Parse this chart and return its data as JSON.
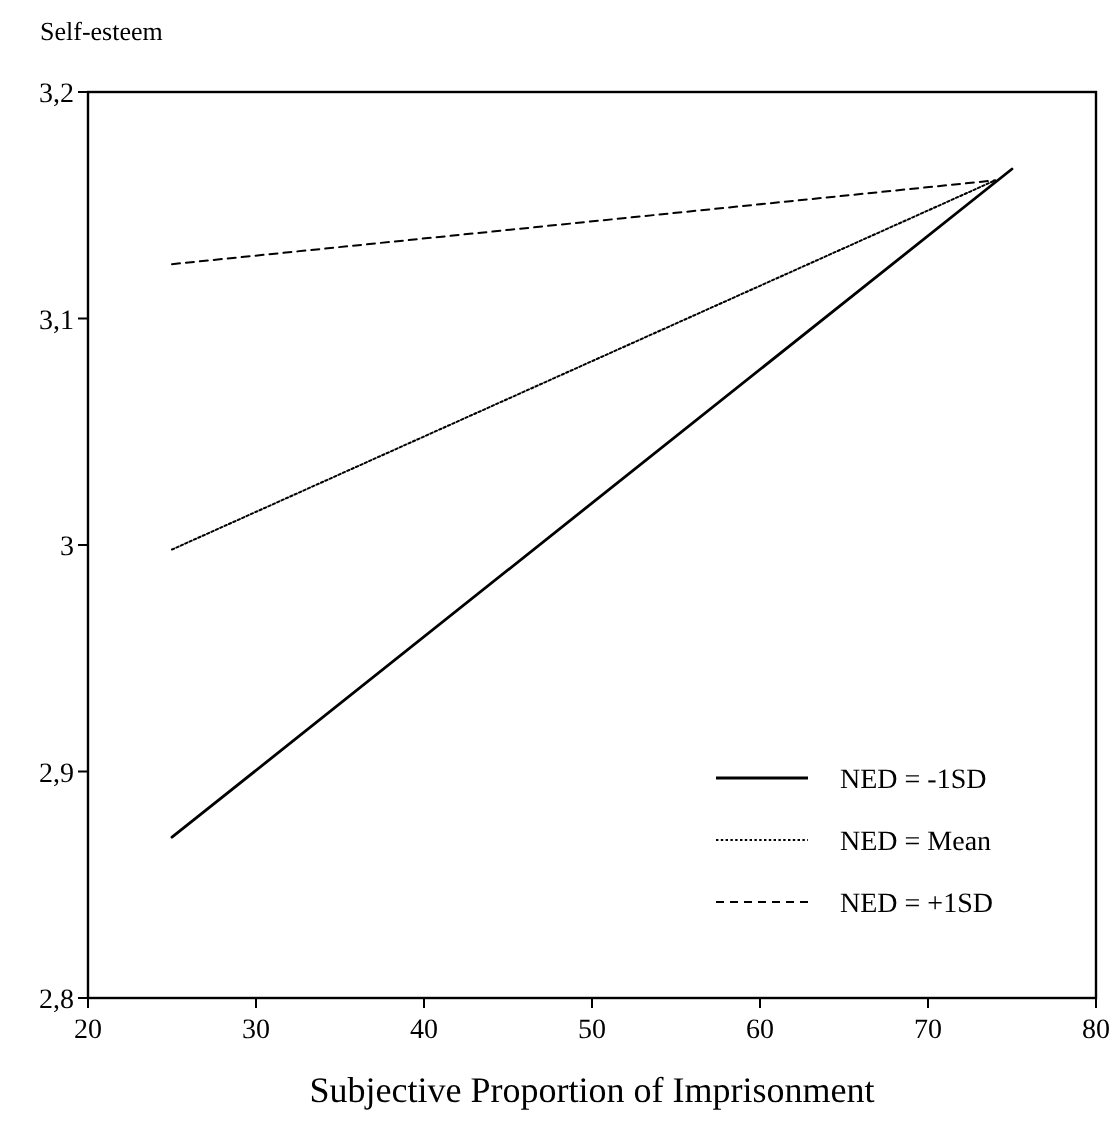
{
  "chart_data": {
    "type": "line",
    "xlabel": "Subjective Proportion of Imprisonment",
    "ylabel": "Self-esteem",
    "xlim": [
      20,
      80
    ],
    "xticks": [
      20,
      30,
      40,
      50,
      60,
      70,
      80
    ],
    "ylim": [
      2.8,
      3.2
    ],
    "yticks": [
      {
        "value": 2.8,
        "label": "2,8"
      },
      {
        "value": 2.9,
        "label": "2,9"
      },
      3,
      {
        "value": 3.1,
        "label": "3,1"
      },
      {
        "value": 3.2,
        "label": "3,2"
      }
    ],
    "grid": false,
    "legend": "bottom right",
    "marker": "none",
    "series": [
      {
        "name": "NED = -1SD",
        "color": "#000000",
        "line_style": "solid",
        "x": [
          25,
          75
        ],
        "values": [
          2.871,
          3.166
        ]
      },
      {
        "name": "NED = Mean",
        "color": "#000000",
        "line_style": "dotted",
        "x": [
          25,
          74
        ],
        "values": [
          2.998,
          3.161
        ]
      },
      {
        "name": "NED = +1SD",
        "color": "#000000",
        "line_style": "dashed",
        "x": [
          25,
          74
        ],
        "values": [
          3.124,
          3.161
        ]
      }
    ]
  }
}
